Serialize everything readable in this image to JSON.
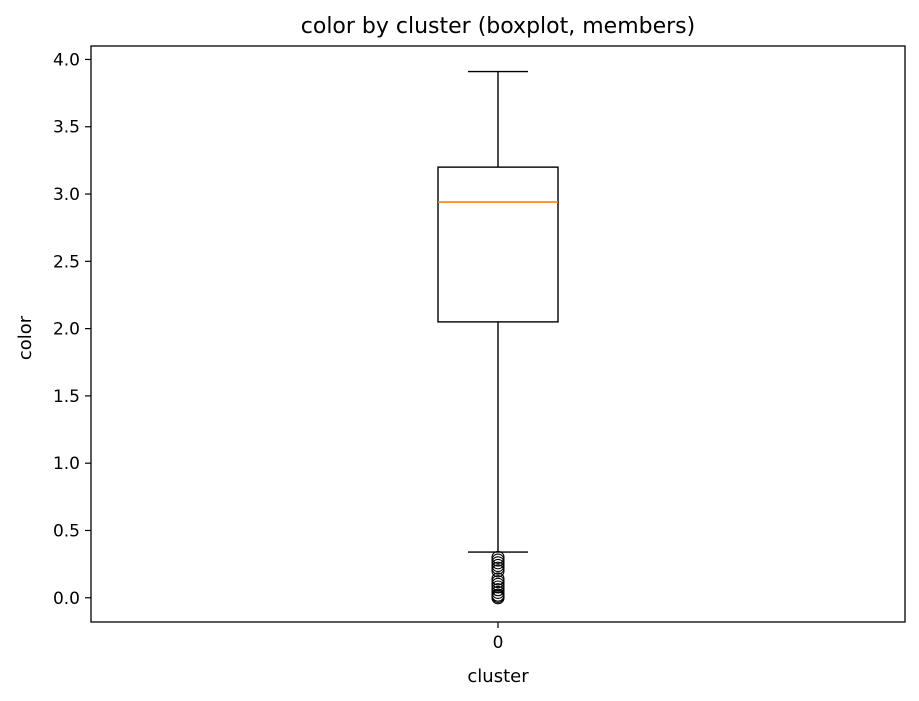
{
  "chart_data": {
    "type": "boxplot",
    "title": "color by cluster (boxplot, members)",
    "xlabel": "cluster",
    "ylabel": "color",
    "categories": [
      "0"
    ],
    "ylim": [
      -0.18,
      4.1
    ],
    "yticks": [
      0.0,
      0.5,
      1.0,
      1.5,
      2.0,
      2.5,
      3.0,
      3.5,
      4.0
    ],
    "ytick_labels": [
      "0.0",
      "0.5",
      "1.0",
      "1.5",
      "2.0",
      "2.5",
      "3.0",
      "3.5",
      "4.0"
    ],
    "grid": false,
    "boxes": [
      {
        "category": "0",
        "whisker_low": 0.34,
        "q1": 2.05,
        "median": 2.94,
        "q3": 3.2,
        "whisker_high": 3.91,
        "outliers": [
          0.3,
          0.28,
          0.26,
          0.24,
          0.22,
          0.2,
          0.14,
          0.12,
          0.1,
          0.08,
          0.06,
          0.04,
          0.02,
          0.01,
          0.0
        ]
      }
    ],
    "colors": {
      "box": "#000000",
      "median": "#ff7f0e",
      "whisker": "#000000",
      "outlier": "#000000"
    }
  }
}
